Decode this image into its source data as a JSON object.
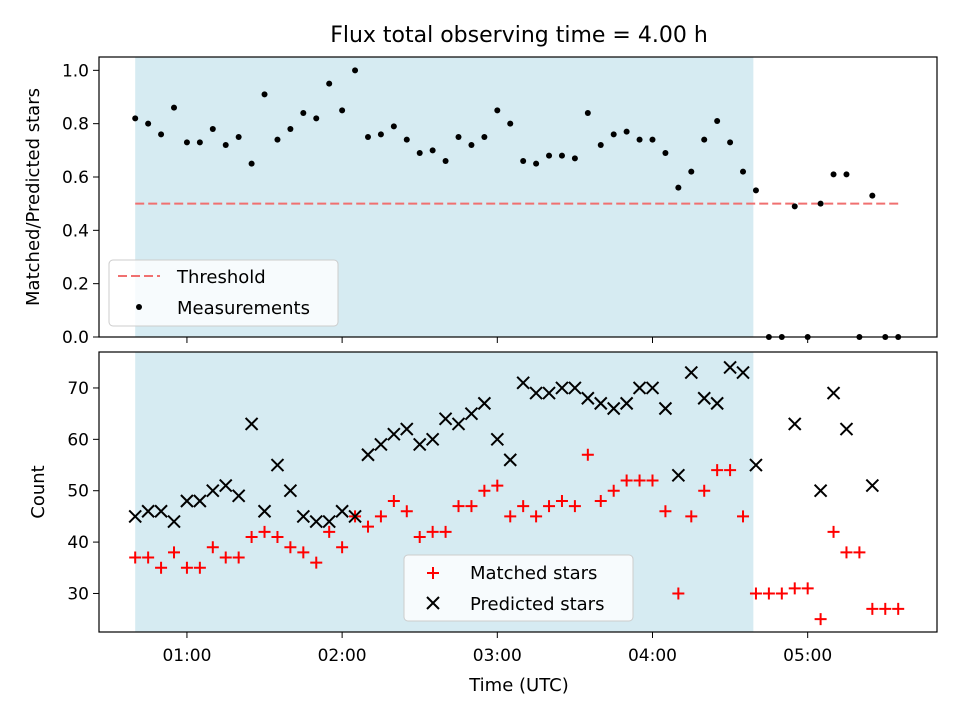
{
  "title": "Flux total observing time = 4.00 h",
  "colors": {
    "shade": "#add8e6",
    "threshold": "#f07070",
    "measurement": "#000000",
    "matched": "#ff0000",
    "predicted": "#000000"
  },
  "chart_data": [
    {
      "type": "scatter",
      "ylabel": "Matched/Predicted stars",
      "ylim": [
        0,
        1.05
      ],
      "yticks": [
        0.0,
        0.2,
        0.4,
        0.6,
        0.8,
        1.0
      ],
      "ytick_labels": [
        "0.0",
        "0.2",
        "0.4",
        "0.6",
        "0.8",
        "1.0"
      ],
      "shaded_range": [
        "00:40",
        "04:39"
      ],
      "legend": {
        "position": "lower-left",
        "entries": [
          "Threshold",
          "Measurements"
        ]
      },
      "threshold": {
        "name": "Threshold",
        "value": 0.5,
        "x_range": [
          "00:40",
          "05:35"
        ]
      },
      "series": [
        {
          "name": "Measurements",
          "x": [
            "00:40",
            "00:45",
            "00:50",
            "00:55",
            "01:00",
            "01:05",
            "01:10",
            "01:15",
            "01:20",
            "01:25",
            "01:30",
            "01:35",
            "01:40",
            "01:45",
            "01:50",
            "01:55",
            "02:00",
            "02:05",
            "02:10",
            "02:15",
            "02:20",
            "02:25",
            "02:30",
            "02:35",
            "02:40",
            "02:45",
            "02:50",
            "02:55",
            "03:00",
            "03:05",
            "03:10",
            "03:15",
            "03:20",
            "03:25",
            "03:30",
            "03:35",
            "03:40",
            "03:45",
            "03:50",
            "03:55",
            "04:00",
            "04:05",
            "04:10",
            "04:15",
            "04:20",
            "04:25",
            "04:30",
            "04:35",
            "04:40",
            "04:45",
            "04:50",
            "04:55",
            "05:00",
            "05:05",
            "05:10",
            "05:15",
            "05:20",
            "05:25",
            "05:30",
            "05:35"
          ],
          "y": [
            0.82,
            0.8,
            0.76,
            0.86,
            0.73,
            0.73,
            0.78,
            0.72,
            0.75,
            0.65,
            0.91,
            0.74,
            0.78,
            0.84,
            0.82,
            0.95,
            0.85,
            1.0,
            0.75,
            0.76,
            0.79,
            0.74,
            0.69,
            0.7,
            0.66,
            0.75,
            0.72,
            0.75,
            0.85,
            0.8,
            0.66,
            0.65,
            0.68,
            0.68,
            0.67,
            0.84,
            0.72,
            0.76,
            0.77,
            0.74,
            0.74,
            0.69,
            0.56,
            0.62,
            0.74,
            0.81,
            0.73,
            0.62,
            0.55,
            0.0,
            0.0,
            0.49,
            0.0,
            0.5,
            0.61,
            0.61,
            0.0,
            0.53,
            0.0,
            0.0
          ]
        }
      ]
    },
    {
      "type": "scatter",
      "xlabel": "Time (UTC)",
      "ylabel": "Count",
      "ylim": [
        22.5,
        77
      ],
      "yticks": [
        30,
        40,
        50,
        60,
        70
      ],
      "ytick_labels": [
        "30",
        "40",
        "50",
        "60",
        "70"
      ],
      "xlim": [
        "00:26",
        "05:50"
      ],
      "xticks": [
        "01:00",
        "02:00",
        "03:00",
        "04:00",
        "05:00"
      ],
      "xtick_labels": [
        "01:00",
        "02:00",
        "03:00",
        "04:00",
        "05:00"
      ],
      "shaded_range": [
        "00:40",
        "04:39"
      ],
      "legend": {
        "position": "lower-center",
        "entries": [
          "Matched stars",
          "Predicted stars"
        ]
      },
      "series": [
        {
          "name": "Matched stars",
          "x": [
            "00:40",
            "00:45",
            "00:50",
            "00:55",
            "01:00",
            "01:05",
            "01:10",
            "01:15",
            "01:20",
            "01:25",
            "01:30",
            "01:35",
            "01:40",
            "01:45",
            "01:50",
            "01:55",
            "02:00",
            "02:05",
            "02:10",
            "02:15",
            "02:20",
            "02:25",
            "02:30",
            "02:35",
            "02:40",
            "02:45",
            "02:50",
            "02:55",
            "03:00",
            "03:05",
            "03:10",
            "03:15",
            "03:20",
            "03:25",
            "03:30",
            "03:35",
            "03:40",
            "03:45",
            "03:50",
            "03:55",
            "04:00",
            "04:05",
            "04:10",
            "04:15",
            "04:20",
            "04:25",
            "04:30",
            "04:35",
            "04:40",
            "04:45",
            "04:50",
            "04:55",
            "05:00",
            "05:05",
            "05:10",
            "05:15",
            "05:20",
            "05:25",
            "05:30",
            "05:35"
          ],
          "y": [
            37,
            37,
            35,
            38,
            35,
            35,
            39,
            37,
            37,
            41,
            42,
            41,
            39,
            38,
            36,
            42,
            39,
            45,
            43,
            45,
            48,
            46,
            41,
            42,
            42,
            47,
            47,
            50,
            51,
            45,
            47,
            45,
            47,
            48,
            47,
            57,
            48,
            50,
            52,
            52,
            52,
            46,
            30,
            45,
            50,
            54,
            54,
            45,
            30,
            30,
            30,
            31,
            31,
            25,
            42,
            38,
            38,
            27,
            27,
            27
          ]
        },
        {
          "name": "Predicted stars",
          "x": [
            "00:40",
            "00:45",
            "00:50",
            "00:55",
            "01:00",
            "01:05",
            "01:10",
            "01:15",
            "01:20",
            "01:25",
            "01:30",
            "01:35",
            "01:40",
            "01:45",
            "01:50",
            "01:55",
            "02:00",
            "02:05",
            "02:10",
            "02:15",
            "02:20",
            "02:25",
            "02:30",
            "02:35",
            "02:40",
            "02:45",
            "02:50",
            "02:55",
            "03:00",
            "03:05",
            "03:10",
            "03:15",
            "03:20",
            "03:25",
            "03:30",
            "03:35",
            "03:40",
            "03:45",
            "03:50",
            "03:55",
            "04:00",
            "04:05",
            "04:10",
            "04:15",
            "04:20",
            "04:25",
            "04:30",
            "04:35",
            "04:40",
            "04:55",
            "05:05",
            "05:10",
            "05:15",
            "05:25"
          ],
          "y": [
            45,
            46,
            46,
            44,
            48,
            48,
            50,
            51,
            49,
            63,
            46,
            55,
            50,
            45,
            44,
            44,
            46,
            45,
            57,
            59,
            61,
            62,
            59,
            60,
            64,
            63,
            65,
            67,
            60,
            56,
            71,
            69,
            69,
            70,
            70,
            68,
            67,
            66,
            67,
            70,
            70,
            66,
            53,
            73,
            68,
            67,
            74,
            73,
            55,
            63,
            50,
            69,
            62,
            51
          ]
        }
      ]
    }
  ]
}
